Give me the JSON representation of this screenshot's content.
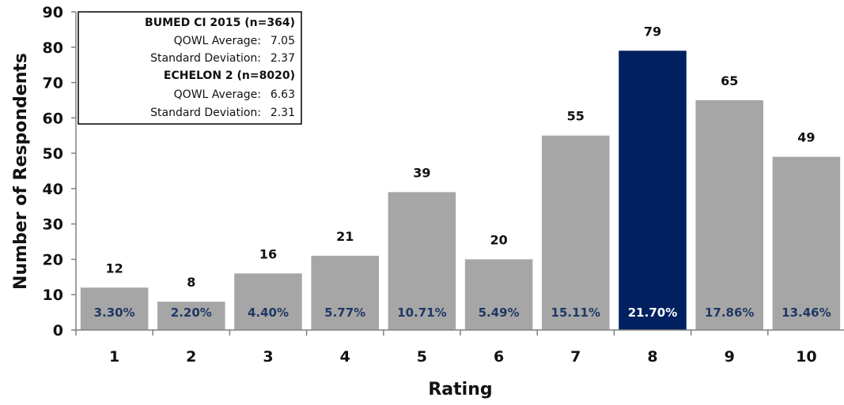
{
  "chart_data": {
    "type": "bar",
    "xlabel": "Rating",
    "ylabel": "Number of Respondents",
    "ylim": [
      0,
      90
    ],
    "yticks": [
      0,
      10,
      20,
      30,
      40,
      50,
      60,
      70,
      80,
      90
    ],
    "categories": [
      "1",
      "2",
      "3",
      "4",
      "5",
      "6",
      "7",
      "8",
      "9",
      "10"
    ],
    "values": [
      12,
      8,
      16,
      21,
      39,
      20,
      55,
      79,
      65,
      49
    ],
    "percentages": [
      "3.30%",
      "2.20%",
      "4.40%",
      "5.77%",
      "10.71%",
      "5.49%",
      "15.11%",
      "21.70%",
      "17.86%",
      "13.46%"
    ],
    "highlight_category": "8",
    "grid": false,
    "legend_placement": "top-left"
  },
  "stats_box": {
    "group1_title": "BUMED CI 2015 (n=364)",
    "group1_avg_label": "QOWL Average:",
    "group1_avg_value": "7.05",
    "group1_sd_label": "Standard Deviation:",
    "group1_sd_value": "2.37",
    "group2_title": "ECHELON 2 (n=8020)",
    "group2_avg_label": "QOWL Average:",
    "group2_avg_value": "6.63",
    "group2_sd_label": "Standard Deviation:",
    "group2_sd_value": "2.31"
  },
  "colors": {
    "bar": "#a6a6a6",
    "highlight_bar": "#002060",
    "pct_text": "#1f3864",
    "highlight_pct_text": "#ffffff",
    "axis": "#808080"
  }
}
